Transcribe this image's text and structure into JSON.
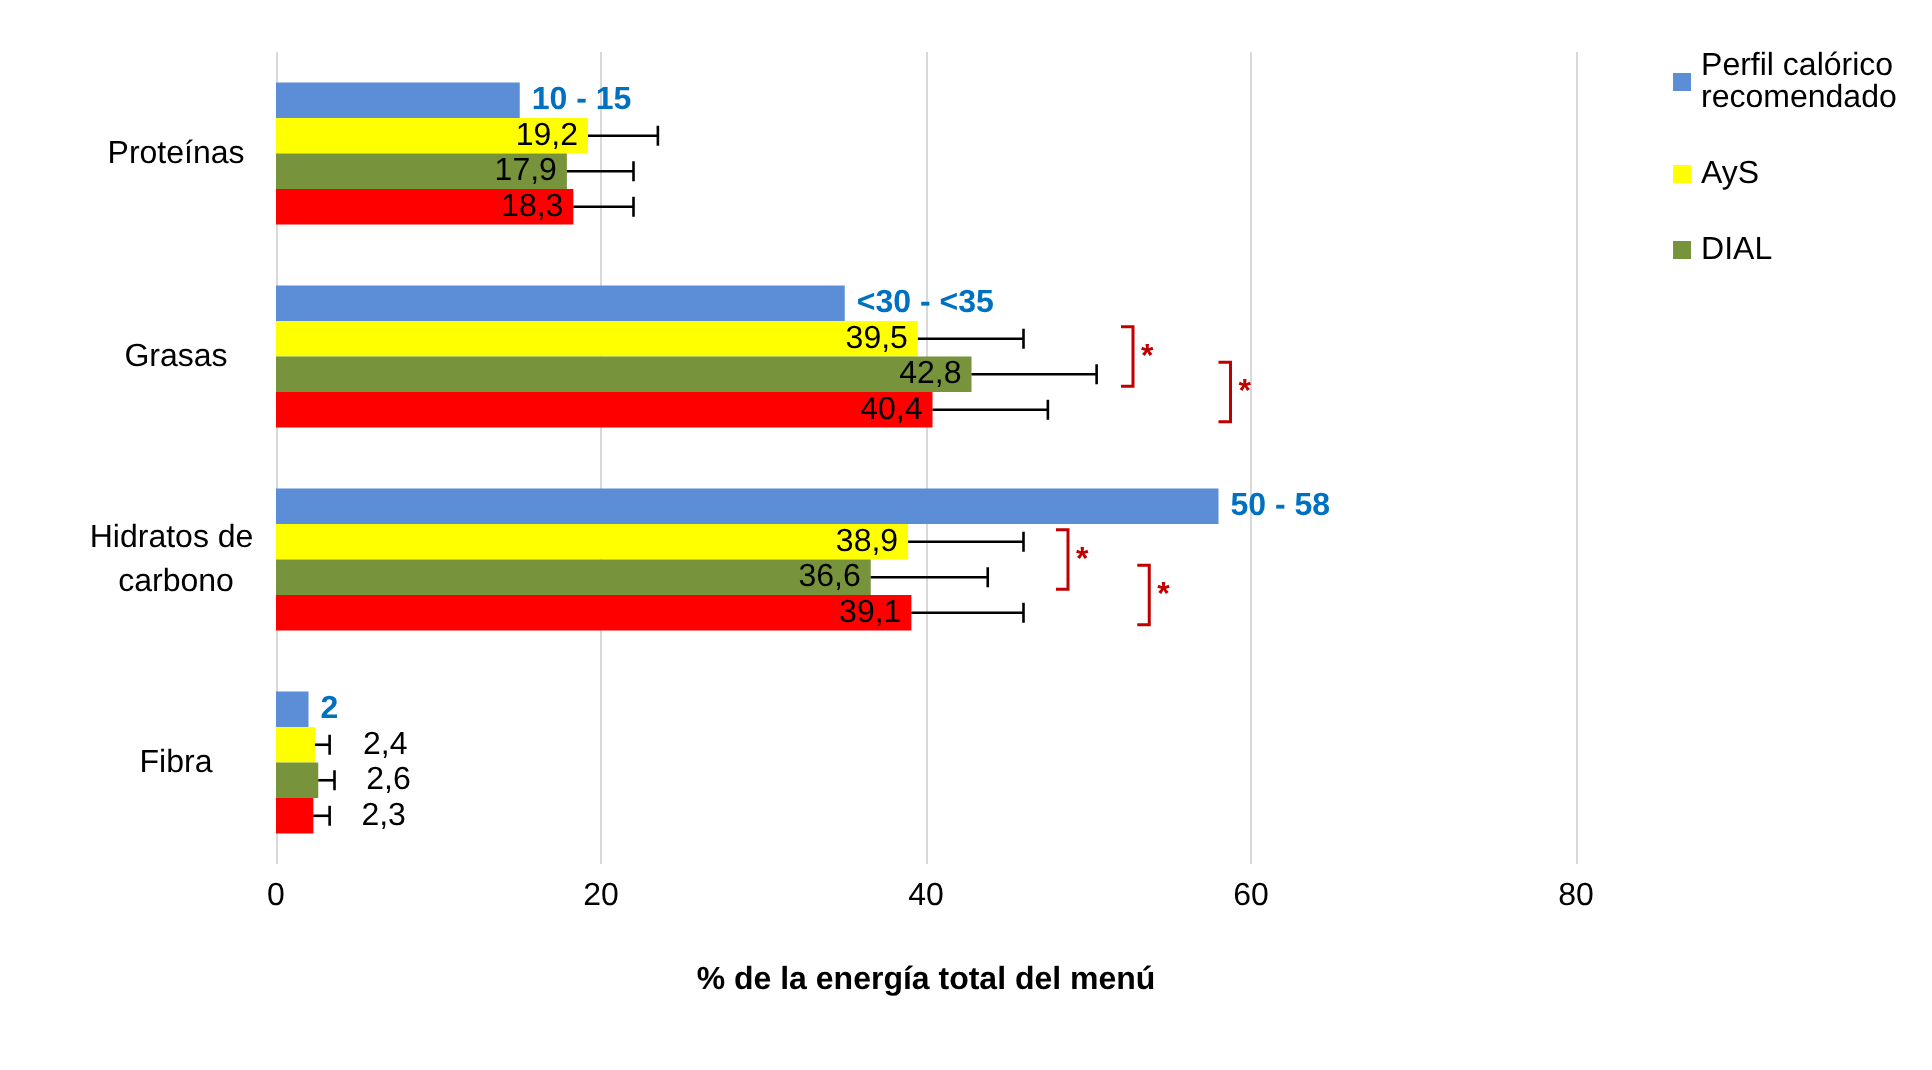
{
  "chart_data": {
    "type": "bar",
    "orientation": "horizontal",
    "xlabel": "% de la energía total del menú",
    "categories": [
      "Proteínas",
      "Grasas",
      "Hidratos de carbono",
      "Fibra"
    ],
    "series": [
      {
        "name": "Perfil calórico recomendado",
        "color": "#5b8ed6",
        "values": [
          15,
          35,
          58,
          2
        ]
      },
      {
        "name": "AyS",
        "color": "#ffff00",
        "values": [
          19.2,
          39.5,
          38.9,
          2.4
        ],
        "value_labels": [
          "19,2",
          "39,5",
          "38,9",
          "2,4"
        ],
        "errors": [
          [
            19.2,
            23.5
          ],
          [
            39.5,
            46
          ],
          [
            38.9,
            46
          ],
          [
            2.4,
            3.3
          ]
        ]
      },
      {
        "name": "DIAL",
        "color": "#77933c",
        "values": [
          17.9,
          42.8,
          36.6,
          2.6
        ],
        "value_labels": [
          "17,9",
          "42,8",
          "36,6",
          "2,6"
        ],
        "errors": [
          [
            17.9,
            22
          ],
          [
            42.8,
            50.5
          ],
          [
            36.6,
            43.8
          ],
          [
            2.6,
            3.6
          ]
        ]
      },
      {
        "color": "#ff0000",
        "values": [
          18.3,
          40.4,
          39.1,
          2.3
        ],
        "value_labels": [
          "18,3",
          "40,4",
          "39,1",
          "2,3"
        ],
        "errors": [
          [
            18.3,
            22
          ],
          [
            40.4,
            47.5
          ],
          [
            39.1,
            46
          ],
          [
            2.3,
            3.3
          ]
        ]
      }
    ],
    "annotations": [
      "10 - 15",
      "<30 - <35",
      "50 - 58",
      "2",
      "*",
      "*",
      "*",
      "*"
    ],
    "xlim": [
      0,
      80
    ],
    "xticks": [
      0,
      20,
      40,
      60,
      80
    ],
    "grid": "x",
    "legend": "right"
  }
}
